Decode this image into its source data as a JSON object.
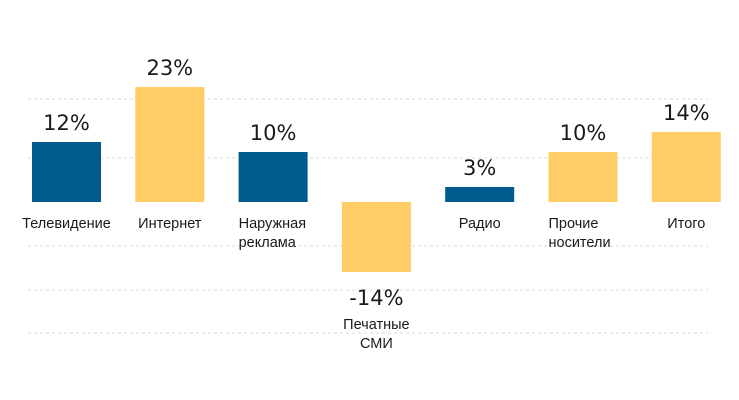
{
  "chart_data": {
    "type": "bar",
    "categories": [
      "Телевидение",
      "Интернет",
      "Наружная реклама",
      "Печатные СМИ",
      "Радио",
      "Прочие носители",
      "Итого"
    ],
    "category_lines": [
      [
        "Телевидение"
      ],
      [
        "Интернет"
      ],
      [
        "Наружная",
        "реклама"
      ],
      [
        "Печатные",
        "СМИ"
      ],
      [
        "Радио"
      ],
      [
        "Прочие",
        "носители"
      ],
      [
        "Итого"
      ]
    ],
    "values": [
      12,
      23,
      10,
      -14,
      3,
      10,
      14
    ],
    "value_labels": [
      "12%",
      "23%",
      "10%",
      "-14%",
      "3%",
      "10%",
      "14%"
    ],
    "bar_colors": [
      "#005b8c",
      "#ffcc66",
      "#005b8c",
      "#ffcc66",
      "#005b8c",
      "#ffcc66",
      "#ffcc66"
    ],
    "ylim": [
      -28,
      23
    ],
    "grid": true,
    "legend": "none",
    "title": "",
    "xlabel": "",
    "ylabel": ""
  }
}
